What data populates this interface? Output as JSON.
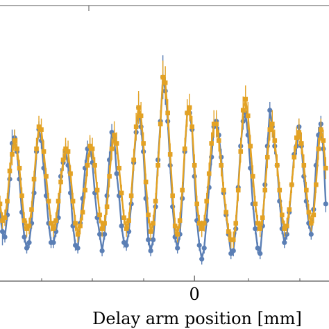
{
  "chart_data": {
    "type": "line",
    "title": "",
    "xlabel": "Delay arm position [mm]",
    "ylabel": "",
    "xlim": [
      -2.4,
      1.66
    ],
    "ylim": [
      0.0,
      1.0
    ],
    "grid": false,
    "legend": "none",
    "x_ticks": [
      {
        "value": 0,
        "label": "0"
      }
    ],
    "series": [
      {
        "color": "#5b7fb5",
        "marker": "circle",
        "x": [
          -2.46,
          -2.43,
          -2.4,
          -2.37,
          -2.34,
          -2.31,
          -2.28,
          -2.25,
          -2.22,
          -2.19,
          -2.16,
          -2.13,
          -2.1,
          -2.07,
          -2.04,
          -2.01,
          -1.98,
          -1.95,
          -1.92,
          -1.89,
          -1.86,
          -1.83,
          -1.8,
          -1.77,
          -1.74,
          -1.71,
          -1.68,
          -1.65,
          -1.62,
          -1.59,
          -1.56,
          -1.53,
          -1.5,
          -1.47,
          -1.44,
          -1.41,
          -1.38,
          -1.35,
          -1.32,
          -1.29,
          -1.26,
          -1.23,
          -1.2,
          -1.17,
          -1.14,
          -1.11,
          -1.08,
          -1.05,
          -1.02,
          -0.99,
          -0.96,
          -0.93,
          -0.9,
          -0.87,
          -0.84,
          -0.81,
          -0.78,
          -0.75,
          -0.72,
          -0.69,
          -0.66,
          -0.63,
          -0.6,
          -0.57,
          -0.54,
          -0.51,
          -0.48,
          -0.45,
          -0.42,
          -0.39,
          -0.36,
          -0.33,
          -0.3,
          -0.27,
          -0.24,
          -0.21,
          -0.18,
          -0.15,
          -0.12,
          -0.09,
          -0.06,
          -0.03,
          0.0,
          0.03,
          0.06,
          0.09,
          0.12,
          0.15,
          0.18,
          0.21,
          0.24,
          0.27,
          0.3,
          0.33,
          0.36,
          0.39,
          0.42,
          0.45,
          0.48,
          0.51,
          0.54,
          0.57,
          0.6,
          0.63,
          0.66,
          0.69,
          0.72,
          0.75,
          0.78,
          0.81,
          0.84,
          0.87,
          0.9,
          0.93,
          0.96,
          0.99,
          1.02,
          1.05,
          1.08,
          1.11,
          1.14,
          1.17,
          1.2,
          1.23,
          1.26,
          1.29,
          1.32,
          1.35,
          1.38,
          1.41,
          1.44,
          1.47,
          1.5,
          1.53,
          1.56,
          1.59,
          1.62
        ],
        "y": [
          0.52,
          0.31,
          0.24,
          0.18,
          0.16,
          0.24,
          0.37,
          0.5,
          0.52,
          0.47,
          0.37,
          0.25,
          0.16,
          0.12,
          0.14,
          0.21,
          0.32,
          0.47,
          0.55,
          0.51,
          0.41,
          0.31,
          0.21,
          0.14,
          0.14,
          0.18,
          0.23,
          0.38,
          0.43,
          0.47,
          0.42,
          0.32,
          0.2,
          0.13,
          0.12,
          0.21,
          0.3,
          0.41,
          0.48,
          0.49,
          0.43,
          0.32,
          0.23,
          0.17,
          0.11,
          0.17,
          0.31,
          0.44,
          0.54,
          0.52,
          0.39,
          0.31,
          0.2,
          0.14,
          0.13,
          0.18,
          0.28,
          0.43,
          0.54,
          0.63,
          0.56,
          0.47,
          0.3,
          0.15,
          0.11,
          0.15,
          0.27,
          0.44,
          0.58,
          0.74,
          0.69,
          0.58,
          0.42,
          0.27,
          0.16,
          0.12,
          0.17,
          0.3,
          0.47,
          0.61,
          0.61,
          0.55,
          0.38,
          0.22,
          0.13,
          0.08,
          0.12,
          0.22,
          0.34,
          0.45,
          0.56,
          0.58,
          0.53,
          0.45,
          0.32,
          0.24,
          0.17,
          0.1,
          0.11,
          0.19,
          0.34,
          0.49,
          0.58,
          0.61,
          0.53,
          0.41,
          0.28,
          0.19,
          0.12,
          0.1,
          0.2,
          0.35,
          0.49,
          0.62,
          0.56,
          0.49,
          0.42,
          0.29,
          0.19,
          0.14,
          0.17,
          0.25,
          0.35,
          0.46,
          0.49,
          0.56,
          0.49,
          0.38,
          0.29,
          0.21,
          0.17,
          0.26,
          0.42,
          0.53,
          0.57,
          0.48,
          0.28
        ],
        "y_err": [
          0.02,
          0.02,
          0.02,
          0.05,
          0.02,
          0.02,
          0.03,
          0.05,
          0.03,
          0.02,
          0.02,
          0.02,
          0.02,
          0.02,
          0.02,
          0.02,
          0.02,
          0.03,
          0.03,
          0.03,
          0.02,
          0.02,
          0.02,
          0.02,
          0.02,
          0.02,
          0.02,
          0.03,
          0.03,
          0.03,
          0.03,
          0.02,
          0.02,
          0.02,
          0.02,
          0.02,
          0.02,
          0.03,
          0.03,
          0.03,
          0.02,
          0.02,
          0.02,
          0.02,
          0.02,
          0.02,
          0.02,
          0.03,
          0.03,
          0.03,
          0.02,
          0.02,
          0.02,
          0.02,
          0.02,
          0.02,
          0.02,
          0.03,
          0.03,
          0.05,
          0.03,
          0.03,
          0.02,
          0.02,
          0.02,
          0.02,
          0.02,
          0.03,
          0.04,
          0.08,
          0.05,
          0.03,
          0.03,
          0.02,
          0.02,
          0.02,
          0.02,
          0.02,
          0.03,
          0.03,
          0.03,
          0.03,
          0.02,
          0.02,
          0.02,
          0.02,
          0.02,
          0.02,
          0.02,
          0.03,
          0.03,
          0.03,
          0.03,
          0.03,
          0.02,
          0.02,
          0.02,
          0.02,
          0.02,
          0.02,
          0.02,
          0.03,
          0.03,
          0.03,
          0.03,
          0.02,
          0.02,
          0.02,
          0.02,
          0.02,
          0.02,
          0.02,
          0.03,
          0.03,
          0.03,
          0.03,
          0.02,
          0.02,
          0.02,
          0.02,
          0.02,
          0.02,
          0.02,
          0.03,
          0.03,
          0.03,
          0.03,
          0.02,
          0.02,
          0.02,
          0.02,
          0.02,
          0.02,
          0.03,
          0.03,
          0.03,
          0.03
        ]
      },
      {
        "color": "#e3a224",
        "marker": "square",
        "x": [
          -2.46,
          -2.43,
          -2.4,
          -2.37,
          -2.34,
          -2.31,
          -2.28,
          -2.25,
          -2.22,
          -2.19,
          -2.16,
          -2.13,
          -2.1,
          -2.07,
          -2.04,
          -2.01,
          -1.98,
          -1.95,
          -1.92,
          -1.89,
          -1.86,
          -1.83,
          -1.8,
          -1.77,
          -1.74,
          -1.71,
          -1.68,
          -1.65,
          -1.62,
          -1.59,
          -1.56,
          -1.53,
          -1.5,
          -1.47,
          -1.44,
          -1.41,
          -1.38,
          -1.35,
          -1.32,
          -1.29,
          -1.26,
          -1.23,
          -1.2,
          -1.17,
          -1.14,
          -1.11,
          -1.08,
          -1.05,
          -1.02,
          -0.99,
          -0.96,
          -0.93,
          -0.9,
          -0.87,
          -0.84,
          -0.81,
          -0.78,
          -0.75,
          -0.72,
          -0.69,
          -0.66,
          -0.63,
          -0.6,
          -0.57,
          -0.54,
          -0.51,
          -0.48,
          -0.45,
          -0.42,
          -0.39,
          -0.36,
          -0.33,
          -0.3,
          -0.27,
          -0.24,
          -0.21,
          -0.18,
          -0.15,
          -0.12,
          -0.09,
          -0.06,
          -0.03,
          0.0,
          0.03,
          0.06,
          0.09,
          0.12,
          0.15,
          0.18,
          0.21,
          0.24,
          0.27,
          0.3,
          0.33,
          0.36,
          0.39,
          0.42,
          0.45,
          0.48,
          0.51,
          0.54,
          0.57,
          0.6,
          0.63,
          0.66,
          0.69,
          0.72,
          0.75,
          0.78,
          0.81,
          0.84,
          0.87,
          0.9,
          0.93,
          0.96,
          0.99,
          1.02,
          1.05,
          1.08,
          1.11,
          1.14,
          1.17,
          1.2,
          1.23,
          1.26,
          1.29,
          1.32,
          1.35,
          1.38,
          1.41,
          1.44,
          1.47,
          1.5,
          1.53,
          1.56,
          1.59,
          1.62
        ],
        "y": [
          0.45,
          0.34,
          0.28,
          0.22,
          0.23,
          0.29,
          0.4,
          0.46,
          0.51,
          0.48,
          0.41,
          0.31,
          0.22,
          0.19,
          0.2,
          0.26,
          0.37,
          0.48,
          0.56,
          0.55,
          0.47,
          0.38,
          0.29,
          0.21,
          0.19,
          0.22,
          0.29,
          0.36,
          0.44,
          0.48,
          0.47,
          0.39,
          0.29,
          0.21,
          0.17,
          0.2,
          0.25,
          0.33,
          0.42,
          0.49,
          0.48,
          0.42,
          0.33,
          0.24,
          0.19,
          0.21,
          0.27,
          0.38,
          0.48,
          0.53,
          0.5,
          0.41,
          0.32,
          0.23,
          0.19,
          0.22,
          0.31,
          0.44,
          0.56,
          0.63,
          0.6,
          0.5,
          0.36,
          0.24,
          0.18,
          0.21,
          0.29,
          0.42,
          0.57,
          0.74,
          0.72,
          0.61,
          0.46,
          0.31,
          0.2,
          0.17,
          0.22,
          0.33,
          0.48,
          0.61,
          0.63,
          0.56,
          0.42,
          0.28,
          0.21,
          0.19,
          0.21,
          0.29,
          0.39,
          0.5,
          0.57,
          0.57,
          0.51,
          0.42,
          0.33,
          0.25,
          0.18,
          0.15,
          0.15,
          0.21,
          0.33,
          0.47,
          0.62,
          0.66,
          0.6,
          0.49,
          0.38,
          0.28,
          0.21,
          0.19,
          0.23,
          0.33,
          0.45,
          0.55,
          0.57,
          0.51,
          0.42,
          0.33,
          0.24,
          0.19,
          0.2,
          0.26,
          0.35,
          0.45,
          0.52,
          0.54,
          0.5,
          0.42,
          0.33,
          0.25,
          0.21,
          0.24,
          0.35,
          0.48,
          0.55,
          0.51,
          0.41
        ],
        "y_err": [
          0.03,
          0.03,
          0.03,
          0.03,
          0.03,
          0.03,
          0.03,
          0.04,
          0.04,
          0.04,
          0.03,
          0.03,
          0.03,
          0.03,
          0.03,
          0.03,
          0.03,
          0.04,
          0.04,
          0.04,
          0.04,
          0.03,
          0.03,
          0.03,
          0.03,
          0.03,
          0.03,
          0.04,
          0.04,
          0.04,
          0.04,
          0.03,
          0.03,
          0.03,
          0.03,
          0.03,
          0.03,
          0.03,
          0.04,
          0.04,
          0.04,
          0.03,
          0.03,
          0.03,
          0.03,
          0.03,
          0.03,
          0.04,
          0.04,
          0.05,
          0.04,
          0.03,
          0.03,
          0.03,
          0.03,
          0.03,
          0.03,
          0.04,
          0.05,
          0.06,
          0.05,
          0.04,
          0.03,
          0.03,
          0.03,
          0.03,
          0.03,
          0.04,
          0.05,
          0.06,
          0.06,
          0.05,
          0.04,
          0.03,
          0.03,
          0.03,
          0.03,
          0.03,
          0.04,
          0.05,
          0.05,
          0.04,
          0.04,
          0.03,
          0.03,
          0.03,
          0.03,
          0.03,
          0.04,
          0.04,
          0.05,
          0.05,
          0.04,
          0.04,
          0.03,
          0.03,
          0.03,
          0.03,
          0.03,
          0.03,
          0.04,
          0.04,
          0.05,
          0.05,
          0.05,
          0.04,
          0.04,
          0.03,
          0.03,
          0.03,
          0.03,
          0.03,
          0.04,
          0.04,
          0.05,
          0.04,
          0.04,
          0.03,
          0.03,
          0.03,
          0.03,
          0.03,
          0.03,
          0.04,
          0.04,
          0.05,
          0.04,
          0.04,
          0.03,
          0.03,
          0.03,
          0.03,
          0.03,
          0.04,
          0.04,
          0.04,
          0.04
        ]
      }
    ]
  }
}
